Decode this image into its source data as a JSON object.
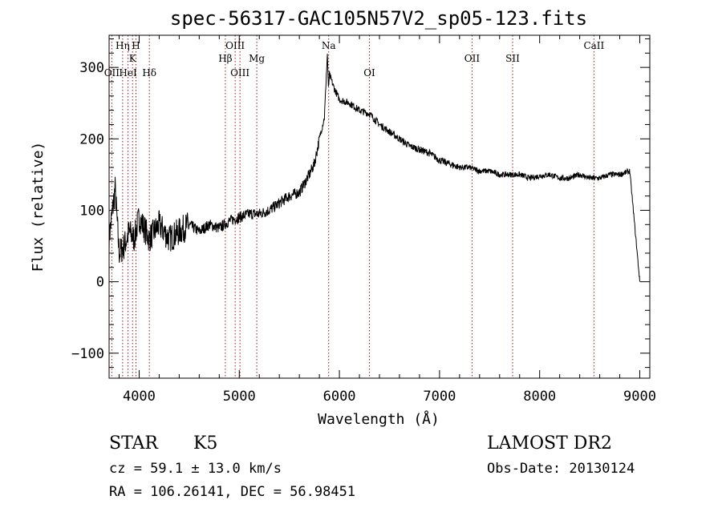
{
  "chart_data": {
    "type": "line",
    "title": "spec-56317-GAC105N57V2_sp05-123.fits",
    "xlabel": "Wavelength (Å)",
    "ylabel": "Flux (relative)",
    "xlim": [
      3700,
      9100
    ],
    "ylim": [
      -135,
      345
    ],
    "xticks": [
      4000,
      5000,
      6000,
      7000,
      8000,
      9000
    ],
    "yticks": [
      -100,
      0,
      100,
      200,
      300
    ],
    "grid": false,
    "legend": "none",
    "line_color": "#000000",
    "marker_color": "#8b1a1a",
    "spectral_lines": [
      {
        "label": "OII",
        "x": 3727,
        "row": 3
      },
      {
        "label": "Hη",
        "x": 3835,
        "row": 1
      },
      {
        "label": "HeI",
        "x": 3889,
        "row": 3
      },
      {
        "label": "K",
        "x": 3934,
        "row": 2
      },
      {
        "label": "H",
        "x": 3968,
        "row": 1
      },
      {
        "label": "Hδ",
        "x": 4102,
        "row": 3
      },
      {
        "label": "Hβ",
        "x": 4861,
        "row": 2
      },
      {
        "label": "OIII",
        "x": 4959,
        "row": 1
      },
      {
        "label": "OIII",
        "x": 5007,
        "row": 3
      },
      {
        "label": "Mg",
        "x": 5175,
        "row": 2
      },
      {
        "label": "Na",
        "x": 5893,
        "row": 1
      },
      {
        "label": "OI",
        "x": 6300,
        "row": 3
      },
      {
        "label": "OII",
        "x": 7325,
        "row": 2
      },
      {
        "label": "SII",
        "x": 7730,
        "row": 2
      },
      {
        "label": "CaII",
        "x": 8542,
        "row": 1
      }
    ],
    "series": [
      {
        "x": [
          3700,
          3760,
          3800,
          3850,
          3900,
          3950,
          4000,
          4100,
          4200,
          4300,
          4400,
          4500,
          4600,
          4700,
          4800,
          4900,
          5000,
          5100,
          5200,
          5300,
          5400,
          5500,
          5600,
          5700,
          5750,
          5800,
          5850,
          5870,
          5880,
          5890,
          5900,
          5950,
          6000,
          6100,
          6200,
          6300,
          6400,
          6500,
          6600,
          6700,
          6800,
          6900,
          7000,
          7100,
          7200,
          7300,
          7400,
          7500,
          7600,
          7700,
          7800,
          7900,
          8000,
          8100,
          8200,
          8300,
          8400,
          8500,
          8600,
          8700,
          8800,
          8900,
          9000
        ],
        "y": [
          60,
          130,
          40,
          50,
          70,
          60,
          90,
          60,
          80,
          60,
          70,
          80,
          70,
          80,
          75,
          85,
          90,
          95,
          95,
          100,
          110,
          120,
          125,
          150,
          165,
          200,
          230,
          290,
          320,
          270,
          290,
          270,
          255,
          250,
          240,
          235,
          220,
          210,
          200,
          190,
          185,
          180,
          170,
          165,
          160,
          160,
          155,
          155,
          150,
          150,
          150,
          145,
          148,
          150,
          145,
          145,
          150,
          145,
          145,
          150,
          150,
          155,
          0
        ]
      }
    ]
  },
  "info": {
    "class": "STAR",
    "subclass": "K5",
    "cz": "cz = 59.1 ± 13.0 km/s",
    "coords": "RA = 106.26141, DEC =  56.98451",
    "survey": "LAMOST DR2",
    "obs_date": "Obs-Date: 20130124"
  }
}
